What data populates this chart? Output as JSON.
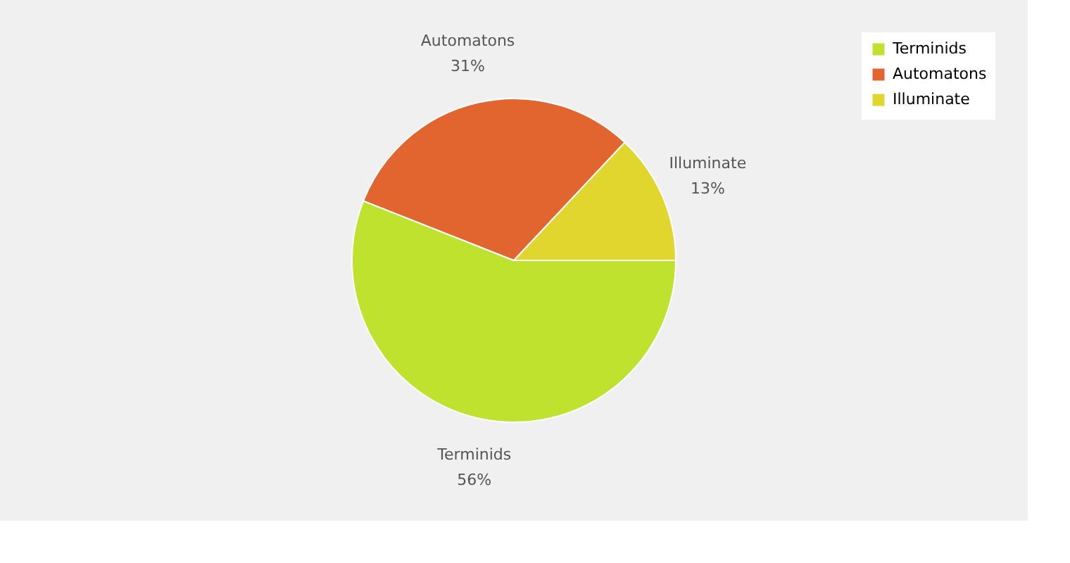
{
  "chart_data": {
    "type": "pie",
    "categories": [
      "Terminids",
      "Automatons",
      "Illuminate"
    ],
    "values": [
      56,
      31,
      13
    ],
    "colors": [
      "#bee22e",
      "#e2642e",
      "#e0d62e"
    ],
    "value_labels": [
      "56%",
      "31%",
      "13%"
    ],
    "legend": "top right"
  }
}
